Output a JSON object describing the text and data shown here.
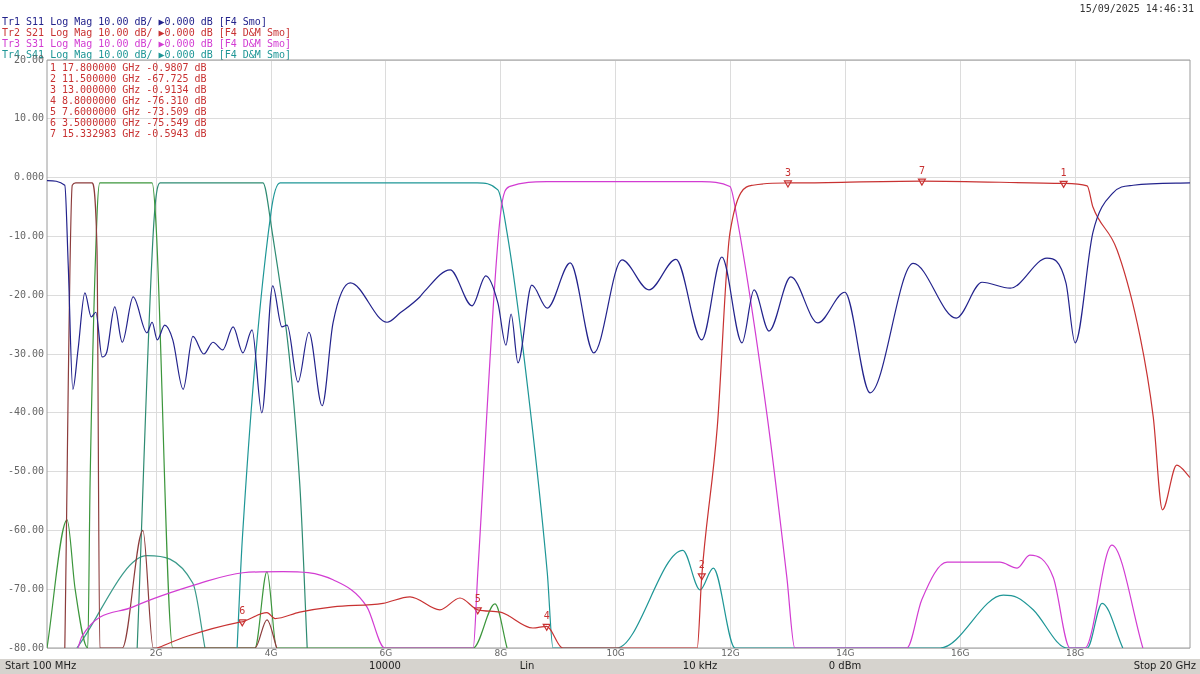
{
  "chart_data": {
    "type": "line",
    "xlim": [
      0.1,
      20
    ],
    "ylim": [
      -80,
      20
    ],
    "xticks": [
      {
        "value": 2,
        "label": "2G"
      },
      {
        "value": 4,
        "label": "4G"
      },
      {
        "value": 6,
        "label": "6G"
      },
      {
        "value": 8,
        "label": "8G"
      },
      {
        "value": 10,
        "label": "10G"
      },
      {
        "value": 12,
        "label": "12G"
      },
      {
        "value": 14,
        "label": "14G"
      },
      {
        "value": 16,
        "label": "16G"
      },
      {
        "value": 18,
        "label": "18G"
      }
    ],
    "yticks": [
      {
        "value": -80,
        "label": "-80.00"
      },
      {
        "value": -70,
        "label": "-70.00"
      },
      {
        "value": -60,
        "label": "-60.00"
      },
      {
        "value": -50,
        "label": "-50.00"
      },
      {
        "value": -40,
        "label": "-40.00"
      },
      {
        "value": -30,
        "label": "-30.00"
      },
      {
        "value": -20,
        "label": "-20.00"
      },
      {
        "value": -10,
        "label": "-10.00"
      },
      {
        "value": 0,
        "label": "0.000"
      },
      {
        "value": 10,
        "label": "10.00"
      },
      {
        "value": 20,
        "label": "20.00"
      }
    ],
    "grid": true,
    "legend": "top left",
    "marker": "none",
    "line_style": "solid",
    "series": [
      {
        "name": "Tr1 S11 Log Mag 10.00 dB/ ▶0.000 dB [F4 Smo]",
        "color": "#23238c",
        "x": [
          0.1,
          0.41,
          0.47,
          0.55,
          0.64,
          0.76,
          0.87,
          0.95,
          1.06,
          1.14,
          1.28,
          1.41,
          1.6,
          1.84,
          1.93,
          2.02,
          2.15,
          2.29,
          2.47,
          2.64,
          2.83,
          2.99,
          3.16,
          3.34,
          3.51,
          3.67,
          3.84,
          4.03,
          4.19,
          4.28,
          4.47,
          4.66,
          4.89,
          5.08,
          5.38,
          6.02,
          6.25,
          6.59,
          6.65,
          7.12,
          7.5,
          7.74,
          7.95,
          8.09,
          8.18,
          8.3,
          8.54,
          8.81,
          9.21,
          9.62,
          10.11,
          10.58,
          11.05,
          11.5,
          11.85,
          12.2,
          12.41,
          12.67,
          13.05,
          13.52,
          13.99,
          14.43,
          15.18,
          15.93,
          16.38,
          16.87,
          17.51,
          17.84,
          18.0,
          18.31,
          18.66,
          19.01,
          20.0
        ],
        "values": [
          -0.5,
          -1.3,
          -15,
          -36,
          -29.3,
          -19.6,
          -23.7,
          -22.9,
          -30.5,
          -29.7,
          -22,
          -28,
          -20.3,
          -26.4,
          -24.6,
          -27.6,
          -25.1,
          -27.6,
          -36,
          -27,
          -30,
          -28,
          -29.3,
          -25.4,
          -29.8,
          -25.9,
          -40,
          -18.4,
          -25.4,
          -25.1,
          -34.8,
          -26.3,
          -38.8,
          -24.7,
          -17.9,
          -24.6,
          -23,
          -20.3,
          -19.6,
          -15.7,
          -21.8,
          -16.7,
          -21.3,
          -28.5,
          -23.2,
          -31.5,
          -18.3,
          -22.2,
          -14.5,
          -29.8,
          -14,
          -19.1,
          -13.9,
          -27.6,
          -13.5,
          -28.1,
          -19.1,
          -26.1,
          -16.9,
          -24.7,
          -19.5,
          -36.6,
          -14.6,
          -23.9,
          -17.8,
          -18.8,
          -13.7,
          -17.9,
          -28.1,
          -9.3,
          -2.6,
          -1.3,
          -0.9
        ]
      },
      {
        "name": "Tr2 S21 Log Mag 10.00 dB/ ▶0.000 dB [F4 D&M Smo]",
        "color": "#c83232",
        "x": [
          2.02,
          2.54,
          3.46,
          3.5,
          3.93,
          4.07,
          4.5,
          5.08,
          5.95,
          6.42,
          6.94,
          7.29,
          7.6,
          7.99,
          8.56,
          8.8,
          9.08,
          11.42,
          11.5,
          11.77,
          11.99,
          12.39,
          13.0,
          13.21,
          15.332983,
          17.8,
          18.21,
          18.31,
          18.73,
          19.13,
          19.36,
          19.52,
          19.77,
          20.0
        ],
        "values": [
          -80,
          -78,
          -75.6,
          -75.549,
          -74,
          -75,
          -73.9,
          -73,
          -72.4,
          -71.3,
          -73.5,
          -71.5,
          -73.509,
          -73.9,
          -76.6,
          -76.31,
          -80,
          -80,
          -67.725,
          -42.4,
          -9.4,
          -1.3,
          -0.9134,
          -0.9,
          -0.5943,
          -0.9807,
          -1.4,
          -5,
          -12.3,
          -27,
          -40.7,
          -56.5,
          -48.9,
          -51
        ]
      },
      {
        "name": "Tr3 S31 Log Mag 10.00 dB/ ▶0.000 dB [F4 D&M Smo]",
        "color": "#d23cd2",
        "x": [
          0.64,
          0.71,
          1.6,
          2.76,
          3.51,
          4.21,
          5.08,
          5.67,
          5.98,
          7.52,
          7.6,
          7.99,
          8.16,
          8.8,
          11.5,
          11.99,
          12.11,
          12.64,
          12.98,
          13.12,
          15.07,
          15.33,
          15.77,
          16.69,
          16.99,
          17.21,
          17.62,
          17.91,
          18.17,
          18.64,
          19.18
        ],
        "values": [
          -80,
          -78,
          -73,
          -69,
          -67.2,
          -67,
          -68.4,
          -73,
          -80,
          -80,
          -67.2,
          -6.7,
          -1.5,
          -0.7,
          -0.7,
          -1.5,
          -6.7,
          -40.7,
          -67.9,
          -80,
          -80,
          -71.8,
          -65.4,
          -65.4,
          -66.4,
          -64.2,
          -68,
          -80,
          -80,
          -62.5,
          -80
        ]
      },
      {
        "name": "Tr4 S41 Log Mag 10.00 dB/ ▶0.000 dB [F4 D&M Smo]",
        "color": "#1e9696",
        "x": [
          3.41,
          3.5,
          4.0,
          4.16,
          7.59,
          7.95,
          8.11,
          8.39,
          8.81,
          8.91,
          10.02,
          11.17,
          11.47,
          11.7,
          12.08,
          15.65,
          16.75,
          16.99,
          17.27,
          17.86,
          18.21,
          18.47,
          18.83
        ],
        "values": [
          -80,
          -61.6,
          -5.9,
          -0.9,
          -0.9,
          -2.1,
          -9.4,
          -29.3,
          -67.2,
          -80,
          -80,
          -63.4,
          -70.1,
          -66.4,
          -80,
          -80,
          -71,
          -71.4,
          -73.5,
          -80,
          -80,
          -72.4,
          -80
        ]
      },
      {
        "color": "#8c3c3c",
        "x": [
          0.41,
          0.54,
          0.6,
          0.88,
          0.97,
          1.02,
          1.41,
          1.77,
          1.95,
          3.72,
          3.93,
          4.1
        ],
        "values": [
          -80,
          -1.3,
          -0.9,
          -0.9,
          -12,
          -80,
          -80,
          -60,
          -80,
          -80,
          -75.2,
          -80
        ]
      },
      {
        "color": "#3c963c",
        "x": [
          0.1,
          0.45,
          0.59,
          0.81,
          0.85,
          0.97,
          1.02,
          1.93,
          2.0,
          2.29,
          3.72,
          3.93,
          4.1,
          7.52,
          7.9,
          8.11
        ],
        "values": [
          -80,
          -58.2,
          -70,
          -80,
          -52,
          -6.6,
          -0.9,
          -0.9,
          -8.3,
          -80,
          -80,
          -67,
          -80,
          -80,
          -72.5,
          -80
        ]
      },
      {
        "color": "#2e8b72",
        "x": [
          1.67,
          1.96,
          2.07,
          3.86,
          3.98,
          4.5,
          4.63
        ],
        "values": [
          -80,
          -7.7,
          -0.9,
          -0.9,
          -6.6,
          -52,
          -80
        ]
      },
      {
        "color": "#3a9a8a",
        "x": [
          0.62,
          1.84,
          2.64,
          2.85
        ],
        "values": [
          -80,
          -64.3,
          -69,
          -80
        ]
      },
      {
        "type": "scatter",
        "marker": "triangle",
        "color": "#c83232",
        "x": [
          17.8,
          11.5,
          13.0,
          8.8,
          7.6,
          3.5,
          15.332983
        ],
        "values": [
          -0.9807,
          -67.725,
          -0.9134,
          -76.31,
          -73.509,
          -75.549,
          -0.5943
        ]
      }
    ],
    "annotations": [
      "15/09/2025 14:46:31",
      "1 17.800000 GHz -0.9807 dB",
      "2 11.500000 GHz -67.725 dB",
      "3 13.000000 GHz -0.9134 dB",
      "4 8.8000000 GHz -76.310 dB",
      "5 7.6000000 GHz -73.509 dB",
      "6 3.5000000 GHz -75.549 dB",
      "7 15.332983 GHz -0.5943 dB",
      "Start 100 MHz",
      "10000",
      "Lin",
      "10 kHz",
      "0 dBm",
      "Stop 20 GHz",
      {
        "text": "1",
        "x": 17.8,
        "y": -0.9807
      },
      {
        "text": "2",
        "x": 11.5,
        "y": -67.725
      },
      {
        "text": "3",
        "x": 13.0,
        "y": -0.9134
      },
      {
        "text": "4",
        "x": 8.8,
        "y": -76.31
      },
      {
        "text": "5",
        "x": 7.6,
        "y": -73.509
      },
      {
        "text": "6",
        "x": 3.5,
        "y": -75.549
      },
      {
        "text": "7",
        "x": 15.332983,
        "y": -0.5943
      }
    ]
  }
}
